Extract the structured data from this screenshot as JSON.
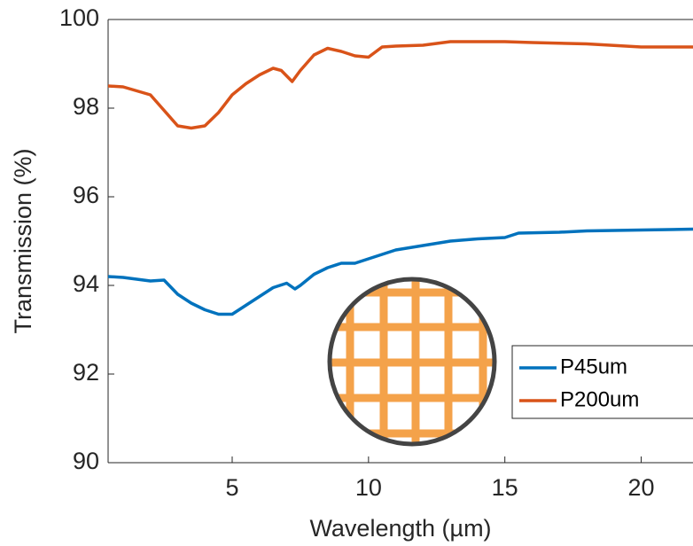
{
  "chart_data": {
    "type": "line",
    "xlabel": "Wavelength (µm)",
    "ylabel": "Transmission (%)",
    "xlim": [
      0.45,
      21.9
    ],
    "ylim": [
      90,
      100
    ],
    "xticks": [
      5,
      10,
      15,
      20
    ],
    "yticks": [
      90,
      92,
      94,
      96,
      98,
      100
    ],
    "legend": "lower right",
    "series": [
      {
        "name": "P45um",
        "color": "#0072bd",
        "x": [
          0.45,
          1,
          2,
          2.5,
          3,
          3.5,
          4,
          4.5,
          5,
          5.5,
          6,
          6.5,
          7,
          7.3,
          7.5,
          8,
          8.5,
          9,
          9.5,
          10,
          10.5,
          11,
          12,
          13,
          14,
          15,
          15.5,
          17,
          18,
          20,
          21.9
        ],
        "values": [
          94.2,
          94.18,
          94.1,
          94.12,
          93.8,
          93.6,
          93.45,
          93.35,
          93.35,
          93.55,
          93.75,
          93.95,
          94.05,
          93.92,
          94.0,
          94.25,
          94.4,
          94.5,
          94.5,
          94.6,
          94.7,
          94.8,
          94.9,
          95.0,
          95.05,
          95.08,
          95.18,
          95.2,
          95.23,
          95.25,
          95.27
        ]
      },
      {
        "name": "P200um",
        "color": "#d95319",
        "x": [
          0.45,
          1,
          2,
          2.5,
          3,
          3.5,
          4,
          4.5,
          5,
          5.5,
          6,
          6.5,
          6.8,
          7.2,
          7.5,
          8,
          8.5,
          9,
          9.5,
          10,
          10.5,
          11,
          12,
          13,
          15,
          16,
          18,
          20,
          21.9
        ],
        "values": [
          98.5,
          98.48,
          98.3,
          97.95,
          97.6,
          97.55,
          97.6,
          97.9,
          98.3,
          98.55,
          98.75,
          98.9,
          98.85,
          98.6,
          98.85,
          99.2,
          99.35,
          99.28,
          99.18,
          99.15,
          99.38,
          99.4,
          99.42,
          99.5,
          99.5,
          99.48,
          99.45,
          99.38,
          99.38
        ]
      }
    ]
  }
}
